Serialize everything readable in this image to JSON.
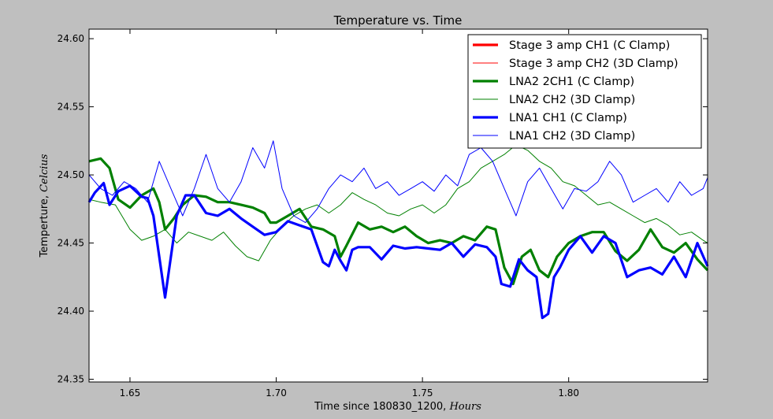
{
  "chart_data": {
    "type": "line",
    "title": "Temperature vs. Time",
    "xlabel_prefix": "Time since 180830_1200, ",
    "xlabel_unit": "Hours",
    "ylabel_prefix": "Temperture, ",
    "ylabel_unit": "Celcius",
    "xlim": [
      1.636,
      1.8475
    ],
    "ylim": [
      24.348,
      24.607
    ],
    "xticks": [
      1.65,
      1.7,
      1.75,
      1.8
    ],
    "xtick_labels": [
      "1.65",
      "1.70",
      "1.75",
      "1.80"
    ],
    "yticks": [
      24.35,
      24.4,
      24.45,
      24.5,
      24.55,
      24.6
    ],
    "ytick_labels": [
      "24.35",
      "24.40",
      "24.45",
      "24.50",
      "24.55",
      "24.60"
    ],
    "grid": false,
    "legend_position": "top-right",
    "series": [
      {
        "name": "Stage 3 amp CH1 (C Clamp)",
        "color": "#ff0000",
        "width": "thick",
        "x": [],
        "y": []
      },
      {
        "name": "Stage 3 amp CH2 (3D Clamp)",
        "color": "#ff0000",
        "width": "thin",
        "x": [],
        "y": []
      },
      {
        "name": "LNA2 2CH1 (C Clamp)",
        "color": "#008000",
        "width": "thick",
        "x": [
          1.636,
          1.64,
          1.643,
          1.646,
          1.65,
          1.654,
          1.658,
          1.66,
          1.662,
          1.665,
          1.668,
          1.672,
          1.676,
          1.68,
          1.684,
          1.688,
          1.692,
          1.696,
          1.698,
          1.7,
          1.704,
          1.708,
          1.712,
          1.716,
          1.72,
          1.722,
          1.724,
          1.728,
          1.732,
          1.736,
          1.74,
          1.744,
          1.748,
          1.752,
          1.756,
          1.76,
          1.764,
          1.768,
          1.772,
          1.775,
          1.778,
          1.781,
          1.784,
          1.787,
          1.79,
          1.793,
          1.796,
          1.8,
          1.804,
          1.808,
          1.812,
          1.816,
          1.82,
          1.824,
          1.828,
          1.832,
          1.836,
          1.84,
          1.844,
          1.8475
        ],
        "y": [
          24.51,
          24.512,
          24.505,
          24.482,
          24.476,
          24.485,
          24.49,
          24.48,
          24.46,
          24.468,
          24.478,
          24.485,
          24.484,
          24.48,
          24.48,
          24.478,
          24.476,
          24.472,
          24.465,
          24.465,
          24.47,
          24.475,
          24.462,
          24.46,
          24.455,
          24.44,
          24.448,
          24.465,
          24.46,
          24.462,
          24.458,
          24.462,
          24.455,
          24.45,
          24.452,
          24.45,
          24.455,
          24.452,
          24.462,
          24.46,
          24.432,
          24.42,
          24.44,
          24.445,
          24.43,
          24.425,
          24.44,
          24.45,
          24.455,
          24.458,
          24.458,
          24.444,
          24.437,
          24.445,
          24.46,
          24.447,
          24.443,
          24.45,
          24.438,
          24.43
        ]
      },
      {
        "name": "LNA2 CH2 (3D Clamp)",
        "color": "#008000",
        "width": "thin",
        "x": [
          1.636,
          1.64,
          1.645,
          1.65,
          1.654,
          1.658,
          1.662,
          1.666,
          1.67,
          1.674,
          1.678,
          1.682,
          1.686,
          1.69,
          1.694,
          1.698,
          1.702,
          1.706,
          1.71,
          1.714,
          1.718,
          1.722,
          1.726,
          1.73,
          1.734,
          1.738,
          1.742,
          1.746,
          1.75,
          1.754,
          1.758,
          1.762,
          1.766,
          1.77,
          1.774,
          1.778,
          1.782,
          1.786,
          1.79,
          1.794,
          1.798,
          1.802,
          1.806,
          1.81,
          1.814,
          1.818,
          1.822,
          1.826,
          1.83,
          1.834,
          1.838,
          1.842,
          1.846,
          1.8475
        ],
        "y": [
          24.482,
          24.48,
          24.478,
          24.46,
          24.452,
          24.455,
          24.46,
          24.45,
          24.458,
          24.455,
          24.452,
          24.458,
          24.448,
          24.44,
          24.437,
          24.452,
          24.462,
          24.47,
          24.475,
          24.478,
          24.472,
          24.478,
          24.487,
          24.482,
          24.478,
          24.472,
          24.47,
          24.475,
          24.478,
          24.472,
          24.478,
          24.49,
          24.495,
          24.505,
          24.51,
          24.515,
          24.522,
          24.518,
          24.51,
          24.505,
          24.495,
          24.492,
          24.485,
          24.478,
          24.48,
          24.475,
          24.47,
          24.465,
          24.468,
          24.463,
          24.456,
          24.458,
          24.452,
          24.45
        ]
      },
      {
        "name": "LNA1 CH1 (C Clamp)",
        "color": "#0000ff",
        "width": "thick",
        "x": [
          1.636,
          1.638,
          1.641,
          1.643,
          1.646,
          1.65,
          1.654,
          1.656,
          1.658,
          1.66,
          1.662,
          1.664,
          1.666,
          1.669,
          1.672,
          1.676,
          1.68,
          1.684,
          1.688,
          1.692,
          1.696,
          1.7,
          1.704,
          1.708,
          1.712,
          1.716,
          1.718,
          1.72,
          1.722,
          1.724,
          1.726,
          1.728,
          1.732,
          1.736,
          1.74,
          1.744,
          1.748,
          1.752,
          1.756,
          1.76,
          1.764,
          1.768,
          1.772,
          1.775,
          1.777,
          1.78,
          1.783,
          1.786,
          1.789,
          1.791,
          1.793,
          1.795,
          1.797,
          1.8,
          1.804,
          1.808,
          1.812,
          1.816,
          1.82,
          1.824,
          1.828,
          1.832,
          1.836,
          1.84,
          1.844,
          1.8475
        ],
        "y": [
          24.48,
          24.487,
          24.494,
          24.478,
          24.488,
          24.492,
          24.484,
          24.483,
          24.47,
          24.44,
          24.41,
          24.44,
          24.47,
          24.485,
          24.485,
          24.472,
          24.47,
          24.475,
          24.468,
          24.462,
          24.456,
          24.458,
          24.466,
          24.463,
          24.46,
          24.436,
          24.433,
          24.445,
          24.437,
          24.43,
          24.445,
          24.447,
          24.447,
          24.438,
          24.448,
          24.446,
          24.447,
          24.446,
          24.445,
          24.45,
          24.44,
          24.449,
          24.447,
          24.44,
          24.42,
          24.418,
          24.438,
          24.43,
          24.425,
          24.395,
          24.398,
          24.425,
          24.432,
          24.445,
          24.455,
          24.443,
          24.455,
          24.45,
          24.425,
          24.43,
          24.432,
          24.427,
          24.44,
          24.425,
          24.45,
          24.433
        ]
      },
      {
        "name": "LNA1 CH2 (3D Clamp)",
        "color": "#0000ff",
        "width": "thin",
        "x": [
          1.636,
          1.64,
          1.644,
          1.648,
          1.652,
          1.656,
          1.66,
          1.664,
          1.668,
          1.672,
          1.676,
          1.68,
          1.684,
          1.688,
          1.692,
          1.696,
          1.699,
          1.702,
          1.706,
          1.71,
          1.714,
          1.718,
          1.722,
          1.726,
          1.73,
          1.734,
          1.738,
          1.742,
          1.746,
          1.75,
          1.754,
          1.758,
          1.762,
          1.766,
          1.77,
          1.774,
          1.778,
          1.782,
          1.786,
          1.79,
          1.794,
          1.798,
          1.802,
          1.806,
          1.81,
          1.814,
          1.818,
          1.822,
          1.826,
          1.83,
          1.834,
          1.838,
          1.842,
          1.846,
          1.8475
        ],
        "y": [
          24.5,
          24.49,
          24.485,
          24.495,
          24.49,
          24.48,
          24.51,
          24.49,
          24.47,
          24.49,
          24.515,
          24.49,
          24.48,
          24.495,
          24.52,
          24.505,
          24.525,
          24.49,
          24.47,
          24.465,
          24.475,
          24.49,
          24.5,
          24.495,
          24.505,
          24.49,
          24.495,
          24.485,
          24.49,
          24.495,
          24.488,
          24.5,
          24.492,
          24.515,
          24.52,
          24.51,
          24.49,
          24.47,
          24.495,
          24.505,
          24.49,
          24.475,
          24.49,
          24.488,
          24.495,
          24.51,
          24.5,
          24.48,
          24.485,
          24.49,
          24.48,
          24.495,
          24.485,
          24.49,
          24.498
        ]
      }
    ]
  }
}
